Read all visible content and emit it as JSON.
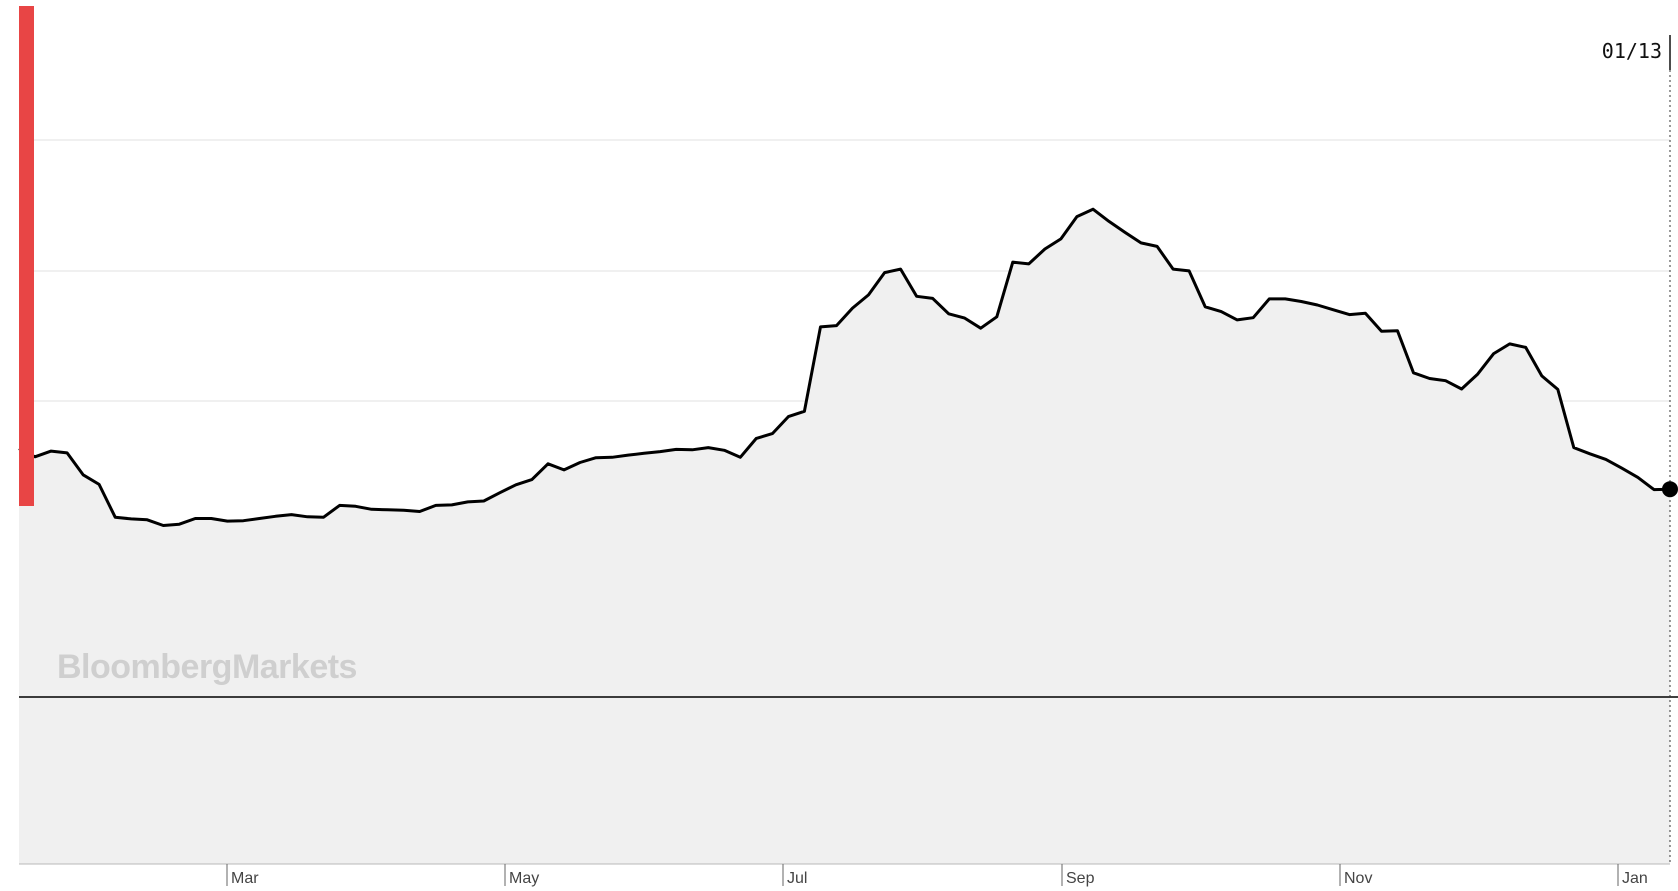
{
  "watermark": {
    "brand": "Bloomberg",
    "product": "Markets"
  },
  "chart_data": {
    "type": "area",
    "title": "",
    "xlabel": "",
    "ylabel": "",
    "grid": "horizontal",
    "x_tick_labels": [
      "Mar",
      "May",
      "Jul",
      "Sep",
      "Nov",
      "Jan"
    ],
    "hover_date_label": "01/13",
    "colors": {
      "line": "#000000",
      "fill": "#f0f0f0",
      "grid": "#e2e2e2",
      "baseline": "#000000",
      "marker": "#e84545"
    },
    "series": [
      {
        "values": [
          56.8,
          54.9,
          56.2,
          55.8,
          50.8,
          48.6,
          41.1,
          40.7,
          40.5,
          39.2,
          39.5,
          40.8,
          40.8,
          40.2,
          40.3,
          40.8,
          41.3,
          41.7,
          41.2,
          41.1,
          43.8,
          43.6,
          42.9,
          42.8,
          42.7,
          42.4,
          43.8,
          43.9,
          44.6,
          44.8,
          46.7,
          48.5,
          49.7,
          53.3,
          51.9,
          53.6,
          54.7,
          54.8,
          55.3,
          55.7,
          56.1,
          56.6,
          56.5,
          57.0,
          56.4,
          54.8,
          59.1,
          60.2,
          64.1,
          65.3,
          84.6,
          84.9,
          88.9,
          91.9,
          97.0,
          97.8,
          91.6,
          91.1,
          87.6,
          86.6,
          84.3,
          86.9,
          99.4,
          99.0,
          102.4,
          104.7,
          109.8,
          111.5,
          108.7,
          106.2,
          103.8,
          103.0,
          97.8,
          97.4,
          89.2,
          88.1,
          86.2,
          86.7,
          91.0,
          91.0,
          90.4,
          89.6,
          88.5,
          87.4,
          87.7,
          83.6,
          83.7,
          74.1,
          72.8,
          72.3,
          70.4,
          73.8,
          78.5,
          80.7,
          79.9,
          73.4,
          70.3,
          57.0,
          55.6,
          54.3,
          52.3,
          50.2,
          47.4,
          47.5
        ]
      }
    ],
    "ylim": [
      0,
      120
    ],
    "hover_index_last": true
  }
}
